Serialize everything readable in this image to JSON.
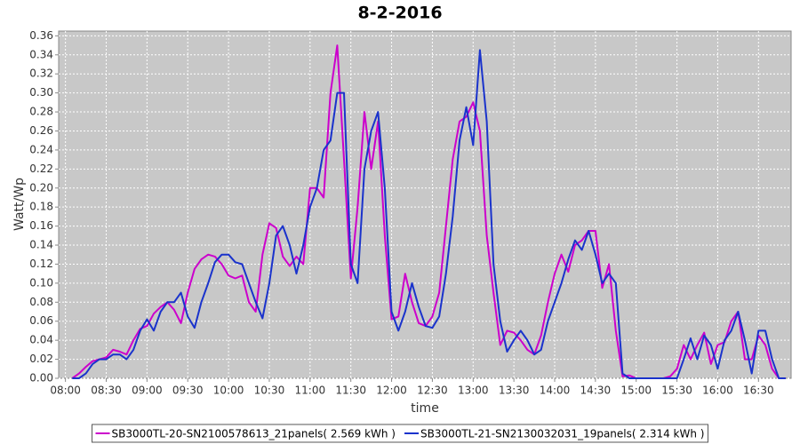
{
  "chart_data": {
    "type": "line",
    "title": "8-2-2016",
    "x_label": "time",
    "y_label": "Watt/Wp",
    "x": [
      "08:05",
      "08:10",
      "08:15",
      "08:20",
      "08:25",
      "08:30",
      "08:35",
      "08:40",
      "08:45",
      "08:50",
      "08:55",
      "09:00",
      "09:05",
      "09:10",
      "09:15",
      "09:20",
      "09:25",
      "09:30",
      "09:35",
      "09:40",
      "09:45",
      "09:50",
      "09:55",
      "10:00",
      "10:05",
      "10:10",
      "10:15",
      "10:20",
      "10:25",
      "10:30",
      "10:35",
      "10:40",
      "10:45",
      "10:50",
      "10:55",
      "11:00",
      "11:05",
      "11:10",
      "11:15",
      "11:20",
      "11:25",
      "11:30",
      "11:35",
      "11:40",
      "11:45",
      "11:50",
      "11:55",
      "12:00",
      "12:05",
      "12:10",
      "12:15",
      "12:20",
      "12:25",
      "12:30",
      "12:35",
      "12:40",
      "12:45",
      "12:50",
      "12:55",
      "13:00",
      "13:05",
      "13:10",
      "13:15",
      "13:20",
      "13:25",
      "13:30",
      "13:35",
      "13:40",
      "13:45",
      "13:50",
      "13:55",
      "14:00",
      "14:05",
      "14:10",
      "14:15",
      "14:20",
      "14:25",
      "14:30",
      "14:35",
      "14:40",
      "14:45",
      "14:50",
      "14:55",
      "15:00",
      "15:05",
      "15:10",
      "15:15",
      "15:20",
      "15:25",
      "15:30",
      "15:35",
      "15:40",
      "15:45",
      "15:50",
      "15:55",
      "16:00",
      "16:05",
      "16:10",
      "16:15",
      "16:20",
      "16:25",
      "16:30",
      "16:35",
      "16:40",
      "16:45",
      "16:50"
    ],
    "series": [
      {
        "name": "SB3000TL-20-SN2100578613_21panels( 2.569 kWh )",
        "color": "#cc00cc",
        "values": [
          0,
          0.005,
          0.012,
          0.018,
          0.02,
          0.022,
          0.03,
          0.028,
          0.025,
          0.04,
          0.052,
          0.055,
          0.068,
          0.075,
          0.08,
          0.072,
          0.058,
          0.09,
          0.115,
          0.125,
          0.13,
          0.128,
          0.12,
          0.108,
          0.105,
          0.108,
          0.08,
          0.07,
          0.13,
          0.163,
          0.158,
          0.128,
          0.118,
          0.128,
          0.12,
          0.2,
          0.2,
          0.19,
          0.3,
          0.35,
          0.23,
          0.105,
          0.18,
          0.28,
          0.22,
          0.27,
          0.15,
          0.062,
          0.065,
          0.11,
          0.08,
          0.058,
          0.055,
          0.065,
          0.09,
          0.16,
          0.23,
          0.27,
          0.275,
          0.29,
          0.26,
          0.15,
          0.09,
          0.035,
          0.05,
          0.048,
          0.04,
          0.03,
          0.025,
          0.045,
          0.08,
          0.11,
          0.13,
          0.112,
          0.14,
          0.145,
          0.155,
          0.155,
          0.095,
          0.12,
          0.05,
          0.002,
          0.003,
          0,
          0,
          0,
          0,
          0,
          0.002,
          0.01,
          0.035,
          0.02,
          0.035,
          0.048,
          0.015,
          0.035,
          0.038,
          0.06,
          0.07,
          0.02,
          0.02,
          0.045,
          0.035,
          0.01,
          0,
          0
        ]
      },
      {
        "name": "SB3000TL-21-SN2130032031_19panels( 2.314 kWh )",
        "color": "#1a33cc",
        "values": [
          0,
          0,
          0.005,
          0.015,
          0.02,
          0.02,
          0.025,
          0.025,
          0.02,
          0.03,
          0.05,
          0.062,
          0.05,
          0.07,
          0.08,
          0.08,
          0.09,
          0.065,
          0.053,
          0.08,
          0.1,
          0.122,
          0.13,
          0.13,
          0.122,
          0.12,
          0.1,
          0.08,
          0.063,
          0.1,
          0.15,
          0.16,
          0.14,
          0.11,
          0.14,
          0.18,
          0.2,
          0.24,
          0.25,
          0.3,
          0.3,
          0.12,
          0.1,
          0.22,
          0.26,
          0.28,
          0.2,
          0.07,
          0.05,
          0.07,
          0.1,
          0.075,
          0.055,
          0.053,
          0.065,
          0.11,
          0.17,
          0.25,
          0.285,
          0.245,
          0.345,
          0.27,
          0.12,
          0.06,
          0.028,
          0.04,
          0.05,
          0.04,
          0.025,
          0.03,
          0.06,
          0.08,
          0.1,
          0.125,
          0.145,
          0.135,
          0.155,
          0.13,
          0.1,
          0.11,
          0.1,
          0.005,
          0,
          0,
          0,
          0,
          0,
          0,
          0,
          0,
          0.02,
          0.042,
          0.02,
          0.045,
          0.035,
          0.01,
          0.04,
          0.05,
          0.07,
          0.04,
          0.005,
          0.05,
          0.05,
          0.02,
          0,
          0
        ]
      }
    ],
    "xlim": [
      "07:55",
      "16:54"
    ],
    "xticks": [
      "08:00",
      "08:30",
      "09:00",
      "09:30",
      "10:00",
      "10:30",
      "11:00",
      "11:30",
      "12:00",
      "12:30",
      "13:00",
      "13:30",
      "14:00",
      "14:30",
      "15:00",
      "15:30",
      "16:00",
      "16:30"
    ],
    "ylim": [
      0,
      0.365
    ],
    "yticks": [
      {
        "value": 0,
        "label": "0.00"
      },
      {
        "value": 0.02,
        "label": "0.02"
      },
      {
        "value": 0.04,
        "label": "0.04"
      },
      {
        "value": 0.06,
        "label": "0.06"
      },
      {
        "value": 0.08,
        "label": "0.08"
      },
      {
        "value": 0.1,
        "label": "0.10"
      },
      {
        "value": 0.12,
        "label": "0.12"
      },
      {
        "value": 0.14,
        "label": "0.14"
      },
      {
        "value": 0.16,
        "label": "0.16"
      },
      {
        "value": 0.18,
        "label": "0.18"
      },
      {
        "value": 0.2,
        "label": "0.20"
      },
      {
        "value": 0.22,
        "label": "0.22"
      },
      {
        "value": 0.24,
        "label": "0.24"
      },
      {
        "value": 0.26,
        "label": "0.26"
      },
      {
        "value": 0.28,
        "label": "0.28"
      },
      {
        "value": 0.3,
        "label": "0.30"
      },
      {
        "value": 0.32,
        "label": "0.32"
      },
      {
        "value": 0.34,
        "label": "0.34"
      },
      {
        "value": 0.36,
        "label": "0.36"
      }
    ],
    "grid": true,
    "legend": "bottom",
    "plot_background": "#c8c8c8"
  }
}
